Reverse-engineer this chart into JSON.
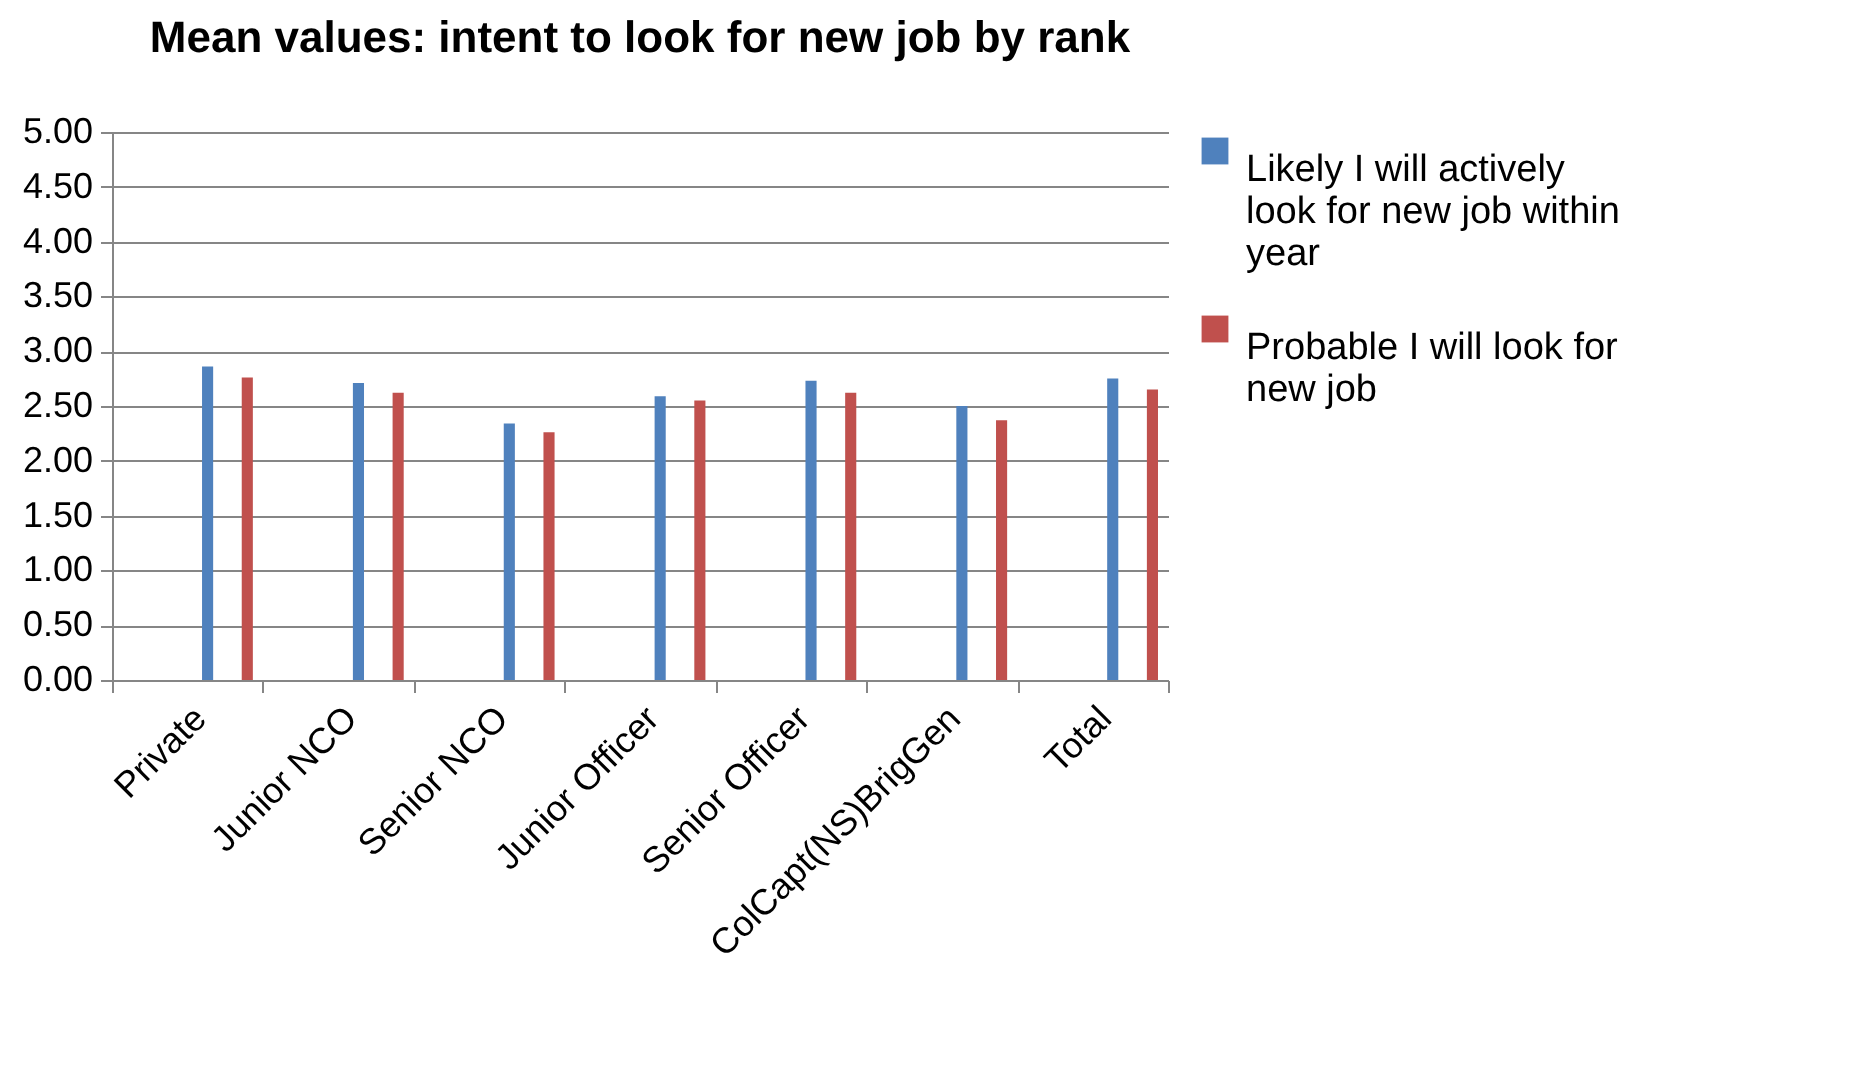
{
  "chart_data": {
    "type": "bar",
    "title": "Mean values: intent to look for new job by rank",
    "categories": [
      "Private",
      "Junior NCO",
      "Senior NCO",
      "Junior Officer",
      "Senior Officer",
      "ColCapt(NS)BrigGen",
      "Total"
    ],
    "series": [
      {
        "name": "Likely I will actively look for new job within year",
        "color": "#4f81bd",
        "values": [
          2.86,
          2.71,
          2.34,
          2.59,
          2.73,
          2.5,
          2.75
        ]
      },
      {
        "name": "Probable  I will look for new job",
        "color": "#c0504d",
        "values": [
          2.76,
          2.62,
          2.26,
          2.55,
          2.62,
          2.37,
          2.65
        ]
      }
    ],
    "ylim": [
      0,
      5
    ],
    "yticks": [
      {
        "value": 0,
        "label": "0.00"
      },
      {
        "value": 0.5,
        "label": "0.50"
      },
      {
        "value": 1,
        "label": "1.00"
      },
      {
        "value": 1.5,
        "label": "1.50"
      },
      {
        "value": 2,
        "label": "2.00"
      },
      {
        "value": 2.5,
        "label": "2.50"
      },
      {
        "value": 3,
        "label": "3.00"
      },
      {
        "value": 3.5,
        "label": "3.50"
      },
      {
        "value": 4,
        "label": "4.00"
      },
      {
        "value": 4.5,
        "label": "4.50"
      },
      {
        "value": 5,
        "label": "5.00"
      }
    ],
    "grid": "y",
    "legend": "right"
  }
}
